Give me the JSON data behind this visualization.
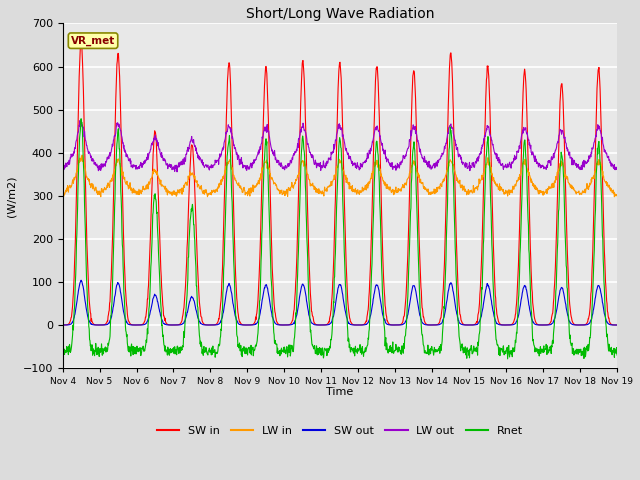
{
  "title": "Short/Long Wave Radiation",
  "ylabel": "(W/m2)",
  "xlabel": "Time",
  "ylim": [
    -100,
    700
  ],
  "yticks": [
    -100,
    0,
    100,
    200,
    300,
    400,
    500,
    600,
    700
  ],
  "n_days": 15,
  "colors": {
    "SW_in": "#ff0000",
    "LW_in": "#ff9900",
    "SW_out": "#0000dd",
    "LW_out": "#9900cc",
    "Rnet": "#00bb00"
  },
  "station_label": "VR_met",
  "background_color": "#dcdcdc",
  "plot_bg_color": "#e8e8e8",
  "grid_color": "#ffffff",
  "xtick_labels": [
    "Nov 4",
    "Nov 5",
    "Nov 6",
    "Nov 7",
    "Nov 8",
    "Nov 9",
    "Nov 10",
    "Nov 11",
    "Nov 12",
    "Nov 13",
    "Nov 14",
    "Nov 15",
    "Nov 16",
    "Nov 17",
    "Nov 18",
    "Nov 19"
  ],
  "sw_peaks": [
    660,
    630,
    450,
    420,
    610,
    600,
    610,
    610,
    600,
    590,
    630,
    600,
    590,
    560,
    595
  ],
  "lw_in_night": 295,
  "lw_out_night": 358,
  "rnet_night": -75,
  "n_points_per_day": 96
}
